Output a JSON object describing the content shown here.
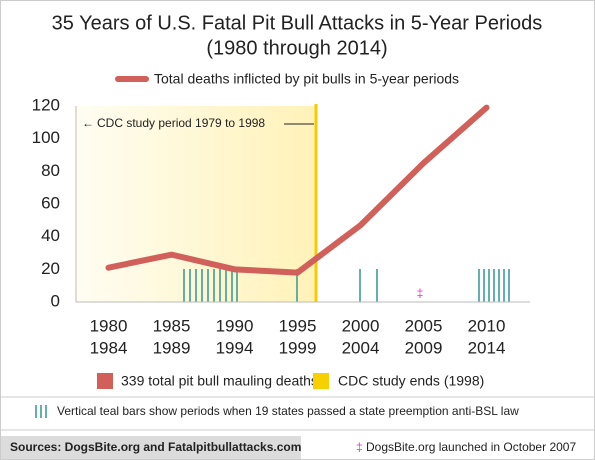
{
  "chart_data": {
    "type": "line",
    "title": "35 Years of U.S. Fatal Pit Bull Attacks in 5-Year Periods",
    "subtitle": "(1980 through 2014)",
    "categories": [
      [
        "1980",
        "1984"
      ],
      [
        "1985",
        "1989"
      ],
      [
        "1990",
        "1994"
      ],
      [
        "1995",
        "1999"
      ],
      [
        "2000",
        "2004"
      ],
      [
        "2005",
        "2009"
      ],
      [
        "2010",
        "2014"
      ]
    ],
    "series": [
      {
        "name": "Total deaths inflicted by pit bulls in 5-year periods",
        "color": "#d2605a",
        "values": [
          21,
          29,
          20,
          18,
          47,
          85,
          119
        ]
      }
    ],
    "ylim": [
      0,
      120
    ],
    "yticks": [
      0,
      20,
      40,
      60,
      80,
      100,
      120
    ],
    "grid": false,
    "annotation": "CDC study period 1979 to 1998",
    "marker_symbol": "‡",
    "bottom_legend": [
      {
        "label": "339 total pit bull mauling deaths",
        "color": "#d2605a"
      },
      {
        "label": "CDC study ends (1998)",
        "color": "#f7d000"
      }
    ],
    "note": "Vertical teal bars show periods when 19 states passed a state preemption anti-BSL law",
    "sources": "Sources: DogsBite.org and Fatalpitbullattacks.com",
    "footnote": "DogsBite.org launched in October 2007"
  }
}
